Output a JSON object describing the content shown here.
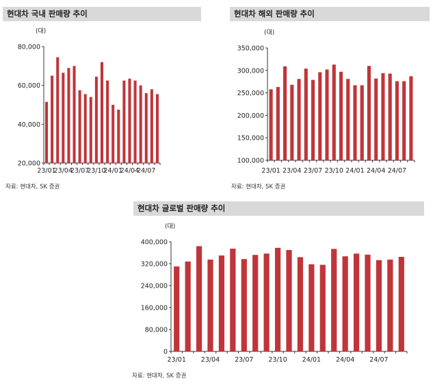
{
  "chart_data": [
    {
      "type": "bar",
      "title": "현대차 국내 판매량 추이",
      "unit": "(대)",
      "source": "자료: 현대차, SK 증권",
      "categories": [
        "23/01",
        "23/02",
        "23/03",
        "23/04",
        "23/05",
        "23/06",
        "23/07",
        "23/08",
        "23/09",
        "23/10",
        "23/11",
        "23/12",
        "24/01",
        "24/02",
        "24/03",
        "24/04",
        "24/05",
        "24/06",
        "24/07",
        "24/08",
        "24/09"
      ],
      "x_tick_labels": [
        "23/01",
        "23/04",
        "23/07",
        "23/10",
        "24/01",
        "24/04",
        "24/07"
      ],
      "values": [
        51500,
        65000,
        74500,
        66500,
        69000,
        70000,
        57500,
        55500,
        54000,
        64500,
        72000,
        62500,
        50000,
        47500,
        62500,
        63500,
        62500,
        60000,
        56000,
        58000,
        55500
      ],
      "y_ticks": [
        "20,000",
        "40,000",
        "60,000",
        "80,000"
      ],
      "ylim": [
        20000,
        80000
      ],
      "bar_color": "#c0353a"
    },
    {
      "type": "bar",
      "title": "현대차 해외 판매량 추이",
      "unit": "(대)",
      "source": "자료: 현대차, SK 증권",
      "categories": [
        "23/01",
        "23/02",
        "23/03",
        "23/04",
        "23/05",
        "23/06",
        "23/07",
        "23/08",
        "23/09",
        "23/10",
        "23/11",
        "23/12",
        "24/01",
        "24/02",
        "24/03",
        "24/04",
        "24/05",
        "24/06",
        "24/07",
        "24/08",
        "24/09"
      ],
      "x_tick_labels": [
        "23/01",
        "23/04",
        "23/07",
        "23/10",
        "24/01",
        "24/04",
        "24/07"
      ],
      "values": [
        258000,
        263000,
        309000,
        268000,
        281000,
        304000,
        279000,
        296000,
        302000,
        313000,
        297000,
        281000,
        267000,
        267000,
        310000,
        282000,
        294000,
        293000,
        276000,
        276000,
        287000
      ],
      "y_ticks": [
        "100,000",
        "150,000",
        "200,000",
        "250,000",
        "300,000",
        "350,000"
      ],
      "ylim": [
        100000,
        350000
      ],
      "bar_color": "#c0353a"
    },
    {
      "type": "bar",
      "title": "현대차 글로벌 판매량 추이",
      "unit": "(대)",
      "source": "자료: 현대차, SK 증권",
      "categories": [
        "23/01",
        "23/02",
        "23/03",
        "23/04",
        "23/05",
        "23/06",
        "23/07",
        "23/08",
        "23/09",
        "23/10",
        "23/11",
        "23/12",
        "24/01",
        "24/02",
        "24/03",
        "24/04",
        "24/05",
        "24/06",
        "24/07",
        "24/08",
        "24/09"
      ],
      "x_tick_labels": [
        "23/01",
        "23/04",
        "23/07",
        "23/10",
        "24/01",
        "24/04",
        "24/07"
      ],
      "values": [
        310000,
        328000,
        384000,
        335000,
        350000,
        375000,
        337000,
        352000,
        357000,
        378000,
        370000,
        344000,
        318000,
        316000,
        374000,
        347000,
        357000,
        353000,
        333000,
        335000,
        345000
      ],
      "y_ticks": [
        "0",
        "80,000",
        "160,000",
        "240,000",
        "320,000",
        "400,000"
      ],
      "ylim": [
        0,
        400000
      ],
      "bar_color": "#c0353a"
    }
  ]
}
